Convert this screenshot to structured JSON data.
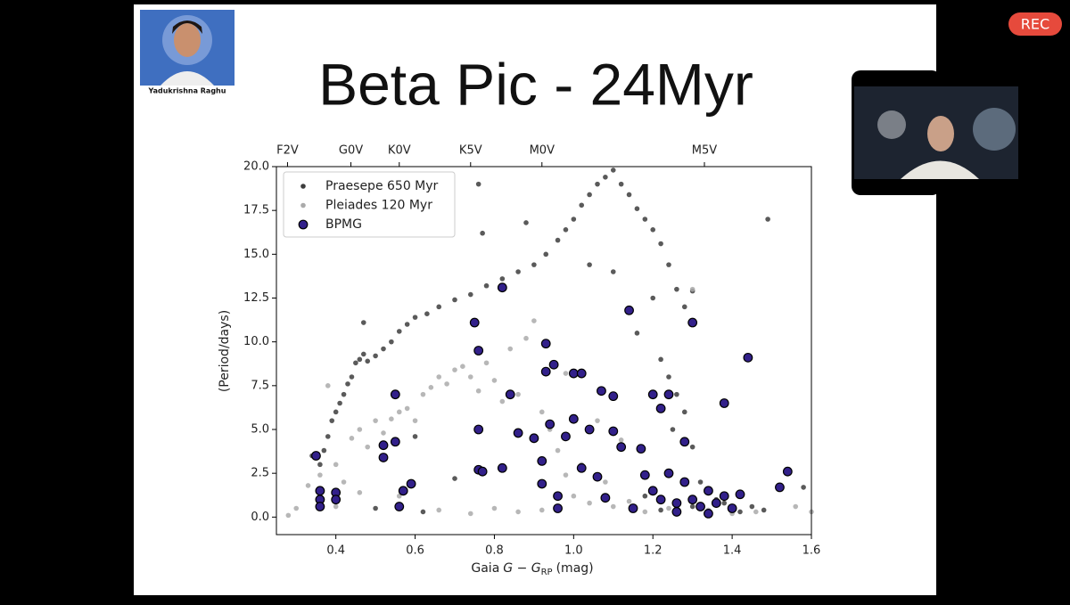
{
  "meeting": {
    "rec": "REC",
    "presenter": "Yadukrishna Raghu"
  },
  "chart_data": {
    "type": "scatter",
    "title": "Beta Pic - 24Myr",
    "xlabel": [
      "Gaia",
      "G − G",
      "RP",
      "(mag)"
    ],
    "ylabel": "(Period/days)",
    "xlim": [
      0.25,
      1.6
    ],
    "ylim": [
      -1,
      20
    ],
    "xticks": [
      0.4,
      0.6,
      0.8,
      {
        "value": 1,
        "label": "1.0"
      },
      1.2,
      1.4,
      1.6
    ],
    "yticks": [
      {
        "value": 0,
        "label": "0.0"
      },
      2.5,
      {
        "value": 5,
        "label": "5.0"
      },
      7.5,
      {
        "value": 10,
        "label": "10.0"
      },
      12.5,
      {
        "value": 15,
        "label": "15.0"
      },
      17.5,
      {
        "value": 20,
        "label": "20.0"
      }
    ],
    "x2lim": [
      0.25,
      1.6
    ],
    "x2ticks": [
      {
        "value": 0.278,
        "label": "F2V"
      },
      {
        "value": 0.438,
        "label": "G0V"
      },
      {
        "value": 0.56,
        "label": "K0V"
      },
      {
        "value": 0.74,
        "label": "K5V"
      },
      {
        "value": 0.92,
        "label": "M0V"
      },
      {
        "value": 1.33,
        "label": "M5V"
      }
    ],
    "legend": "upper left",
    "series": [
      {
        "name": "Praesepe 650 Myr",
        "color": "#3d3d3d",
        "edgecolor": "none",
        "x": [
          0.34,
          0.36,
          0.37,
          0.38,
          0.39,
          0.4,
          0.41,
          0.42,
          0.43,
          0.44,
          0.45,
          0.46,
          0.47,
          0.48,
          0.5,
          0.52,
          0.54,
          0.56,
          0.58,
          0.6,
          0.63,
          0.66,
          0.7,
          0.74,
          0.78,
          0.82,
          0.86,
          0.9,
          0.93,
          0.96,
          0.98,
          1.0,
          1.02,
          1.04,
          1.06,
          1.08,
          1.1,
          1.12,
          1.14,
          1.16,
          1.18,
          1.2,
          1.22,
          1.24,
          1.26,
          1.28,
          1.2,
          1.16,
          1.22,
          1.24,
          1.26,
          1.28,
          1.3,
          1.1,
          1.25,
          1.3,
          1.32,
          1.34,
          1.36,
          1.38,
          1.4,
          1.42,
          1.3,
          1.26,
          1.22,
          1.18,
          1.45,
          1.48,
          1.58,
          1.49,
          0.76,
          0.77,
          0.88,
          0.47,
          1.04,
          0.6,
          0.7,
          0.5,
          0.62
        ],
        "y": [
          3.5,
          3.0,
          3.8,
          4.6,
          5.5,
          6.0,
          6.5,
          7.0,
          7.6,
          8.0,
          8.8,
          9.0,
          9.3,
          8.9,
          9.2,
          9.6,
          10.0,
          10.6,
          11.0,
          11.4,
          11.6,
          12.0,
          12.4,
          12.7,
          13.2,
          13.6,
          14.0,
          14.4,
          15.0,
          15.8,
          16.4,
          17.0,
          17.8,
          18.4,
          19.0,
          19.4,
          19.8,
          19.0,
          18.4,
          17.6,
          17.0,
          16.4,
          15.6,
          14.4,
          13.0,
          12.0,
          12.5,
          10.5,
          9.0,
          8.0,
          7.0,
          6.0,
          12.9,
          14.0,
          5.0,
          4.0,
          2.0,
          1.5,
          1.0,
          0.8,
          0.5,
          0.3,
          0.6,
          0.5,
          0.4,
          1.2,
          0.6,
          0.4,
          1.7,
          17.0,
          19.0,
          16.2,
          16.8,
          11.1,
          14.4,
          4.6,
          2.2,
          0.5,
          0.3
        ]
      },
      {
        "name": "Pleiades 120 Myr",
        "color": "#aaaaaa",
        "edgecolor": "none",
        "x": [
          0.28,
          0.3,
          0.33,
          0.36,
          0.38,
          0.4,
          0.42,
          0.44,
          0.46,
          0.48,
          0.5,
          0.52,
          0.54,
          0.56,
          0.58,
          0.6,
          0.62,
          0.64,
          0.66,
          0.68,
          0.7,
          0.72,
          0.74,
          0.76,
          0.78,
          0.8,
          0.82,
          0.84,
          0.86,
          0.88,
          0.9,
          0.92,
          0.94,
          0.96,
          0.98,
          1.0,
          1.02,
          1.04,
          1.06,
          1.08,
          1.1,
          1.14,
          1.18,
          1.24,
          1.3,
          1.34,
          1.4,
          1.46,
          1.56,
          1.6,
          0.66,
          0.74,
          0.8,
          0.86,
          0.92,
          0.56,
          0.46,
          0.4,
          0.98,
          1.12
        ],
        "y": [
          0.1,
          0.5,
          1.8,
          2.4,
          7.5,
          3.0,
          2.0,
          4.5,
          5.0,
          4.0,
          5.5,
          4.8,
          5.6,
          6.0,
          6.2,
          5.5,
          7.0,
          7.4,
          8.0,
          7.6,
          8.4,
          8.6,
          8.0,
          7.2,
          8.8,
          7.8,
          6.6,
          9.6,
          7.0,
          10.2,
          11.2,
          6.0,
          5.0,
          3.8,
          2.4,
          1.2,
          3.0,
          0.8,
          5.5,
          2.0,
          0.6,
          0.9,
          0.3,
          0.5,
          13.0,
          0.4,
          0.2,
          0.3,
          0.6,
          0.3,
          0.4,
          0.2,
          0.5,
          0.3,
          0.4,
          1.2,
          1.4,
          0.6,
          8.2,
          4.4
        ]
      },
      {
        "name": "BPMG",
        "color": "#32208a",
        "edgecolor": "#000000",
        "x": [
          0.35,
          0.36,
          0.36,
          0.36,
          0.4,
          0.4,
          0.52,
          0.52,
          0.55,
          0.55,
          0.56,
          0.57,
          0.59,
          0.75,
          0.76,
          0.76,
          0.76,
          0.77,
          0.82,
          0.82,
          0.84,
          0.86,
          0.9,
          0.92,
          0.92,
          0.93,
          0.93,
          0.94,
          0.95,
          0.96,
          0.96,
          0.98,
          1.0,
          1.02,
          1.0,
          1.02,
          1.04,
          1.06,
          1.07,
          1.08,
          1.1,
          1.1,
          1.12,
          1.14,
          1.15,
          1.17,
          1.18,
          1.2,
          1.22,
          1.24,
          1.2,
          1.22,
          1.24,
          1.26,
          1.28,
          1.3,
          1.3,
          1.32,
          1.34,
          1.36,
          1.38,
          1.4,
          1.42,
          1.44,
          1.38,
          1.28,
          1.52,
          1.54,
          1.26,
          1.34
        ],
        "y": [
          3.5,
          1.5,
          1.0,
          0.6,
          1.4,
          1.0,
          4.1,
          3.4,
          4.3,
          7.0,
          0.6,
          1.5,
          1.9,
          11.1,
          9.5,
          5.0,
          2.7,
          2.6,
          13.1,
          2.8,
          7.0,
          4.8,
          4.5,
          3.2,
          1.9,
          9.9,
          8.3,
          5.3,
          8.7,
          1.2,
          0.5,
          4.6,
          8.2,
          8.2,
          5.6,
          2.8,
          5.0,
          2.3,
          7.2,
          1.1,
          6.9,
          4.9,
          4.0,
          11.8,
          0.5,
          3.9,
          2.4,
          7.0,
          6.2,
          7.0,
          1.5,
          1.0,
          2.5,
          0.8,
          2.0,
          11.1,
          1.0,
          0.6,
          1.5,
          0.8,
          1.2,
          0.5,
          1.3,
          9.1,
          6.5,
          4.3,
          1.7,
          2.6,
          0.3,
          0.2
        ]
      }
    ]
  }
}
